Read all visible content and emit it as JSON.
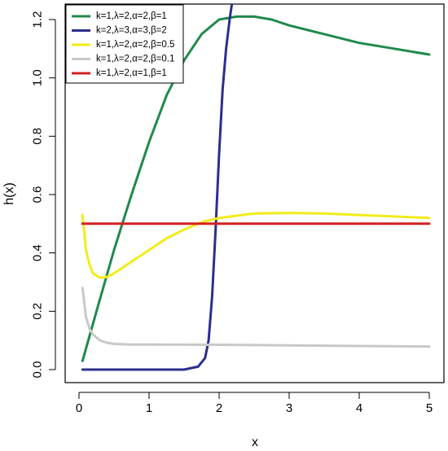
{
  "chart_data": {
    "type": "line",
    "xlabel": "x",
    "ylabel": "h(x)",
    "xlim": [
      0,
      5
    ],
    "ylim": [
      0,
      1.25
    ],
    "xticks": [
      "0",
      "1",
      "2",
      "3",
      "4",
      "5"
    ],
    "yticks": [
      "0.0",
      "0.2",
      "0.4",
      "0.6",
      "0.8",
      "1.0",
      "1.2"
    ],
    "legend_position": "top-left",
    "grid": false,
    "series": [
      {
        "name": "k=1,λ=2,α=2,β=1",
        "color": "#1f8a4c",
        "x": [
          0.05,
          0.25,
          0.5,
          0.75,
          1.0,
          1.25,
          1.5,
          1.75,
          2.0,
          2.25,
          2.5,
          2.75,
          3.0,
          3.5,
          4.0,
          4.5,
          5.0
        ],
        "y": [
          0.03,
          0.2,
          0.41,
          0.6,
          0.78,
          0.94,
          1.06,
          1.15,
          1.2,
          1.21,
          1.21,
          1.2,
          1.18,
          1.15,
          1.12,
          1.1,
          1.08
        ]
      },
      {
        "name": "k=2,λ=3,α=3,β=2",
        "color": "#2b2f8c",
        "x": [
          0.05,
          0.5,
          1.0,
          1.5,
          1.7,
          1.8,
          1.85,
          1.9,
          1.95,
          2.0,
          2.05,
          2.1,
          2.15,
          2.18
        ],
        "y": [
          0.0,
          0.0,
          0.0,
          0.0,
          0.01,
          0.04,
          0.1,
          0.25,
          0.48,
          0.74,
          0.96,
          1.1,
          1.2,
          1.25
        ]
      },
      {
        "name": "k=1,λ=2,α=2,β=0.5",
        "color": "#f2ec1a",
        "x": [
          0.05,
          0.1,
          0.15,
          0.2,
          0.3,
          0.4,
          0.5,
          0.75,
          1.0,
          1.25,
          1.5,
          1.75,
          2.0,
          2.5,
          3.0,
          3.5,
          4.0,
          4.5,
          5.0
        ],
        "y": [
          0.53,
          0.41,
          0.36,
          0.33,
          0.315,
          0.318,
          0.33,
          0.37,
          0.41,
          0.45,
          0.48,
          0.505,
          0.52,
          0.535,
          0.537,
          0.535,
          0.53,
          0.525,
          0.52
        ]
      },
      {
        "name": "k=1,λ=2,α=2,β=0.1",
        "color": "#c8c8c8",
        "x": [
          0.05,
          0.1,
          0.15,
          0.2,
          0.3,
          0.4,
          0.5,
          0.75,
          1.0,
          2.0,
          3.0,
          4.0,
          5.0
        ],
        "y": [
          0.28,
          0.18,
          0.14,
          0.12,
          0.1,
          0.092,
          0.088,
          0.086,
          0.086,
          0.085,
          0.083,
          0.081,
          0.079
        ]
      },
      {
        "name": "k=1,λ=2,α=1,β=1",
        "color": "#d42020",
        "x": [
          0.05,
          5.0
        ],
        "y": [
          0.5,
          0.5
        ]
      }
    ]
  }
}
